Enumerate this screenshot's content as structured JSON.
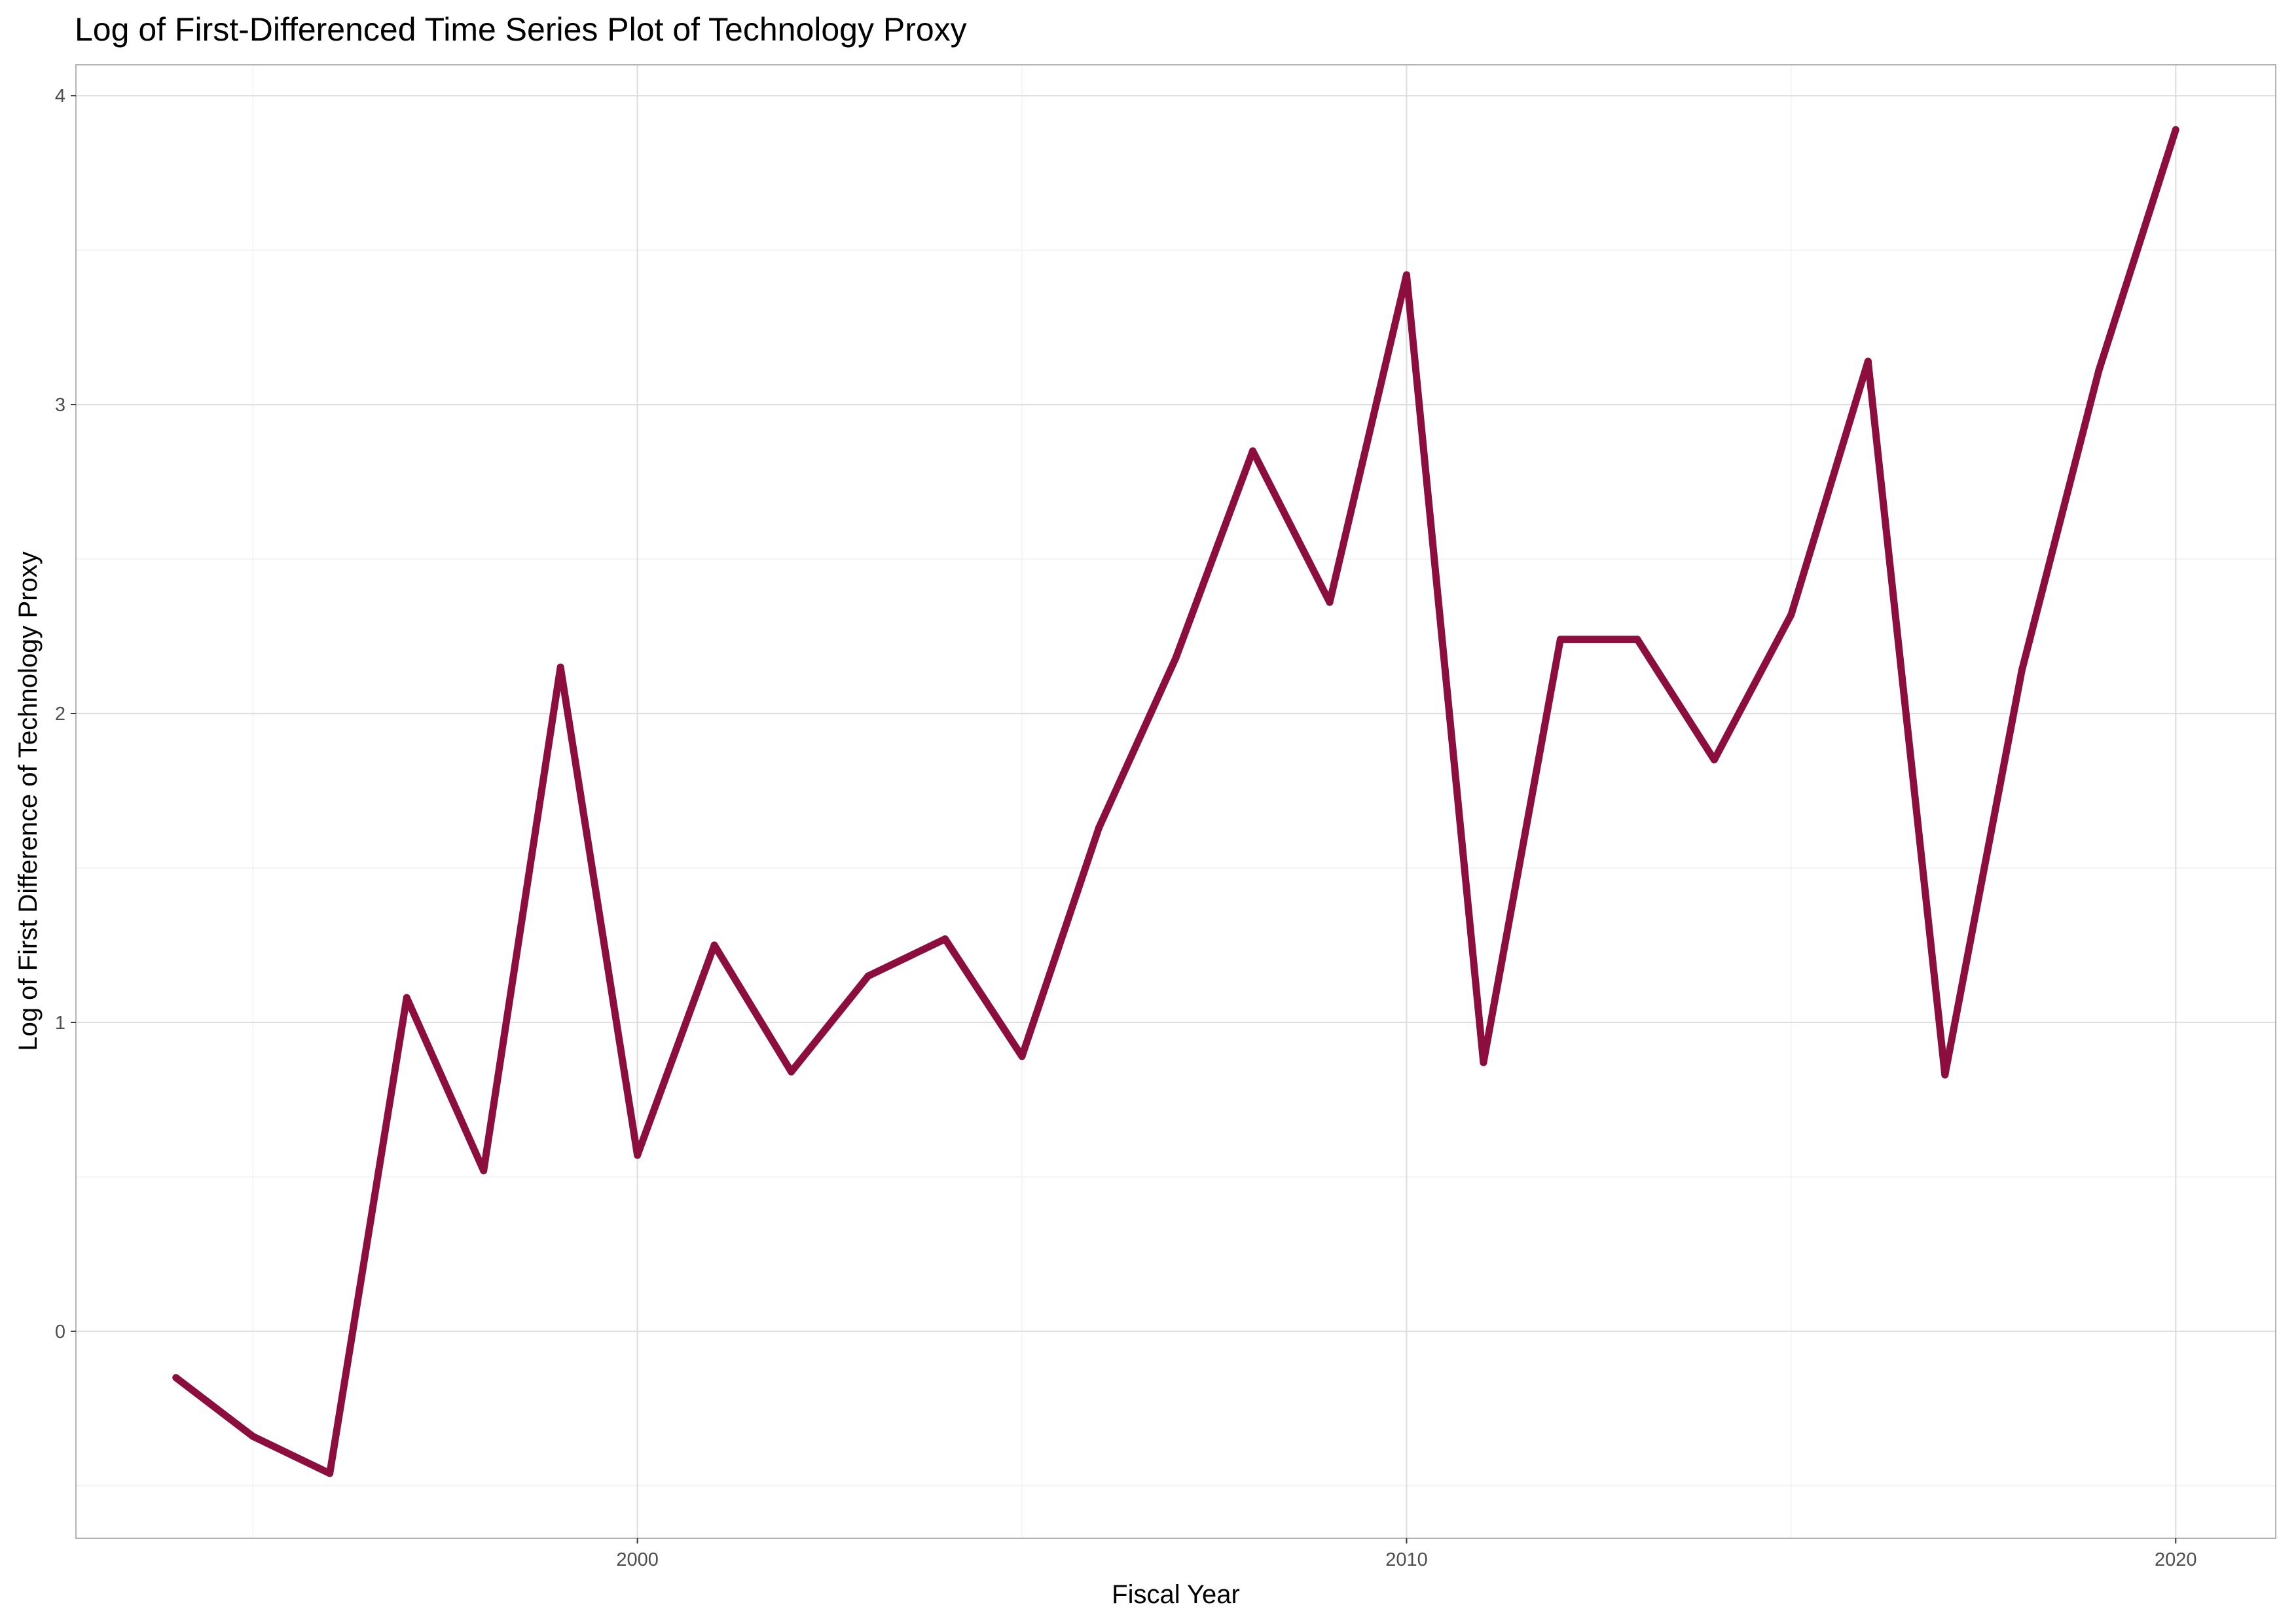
{
  "chart_data": {
    "type": "line",
    "title": "Log of First-Differenced Time Series Plot of Technology Proxy",
    "xlabel": "Fiscal Year",
    "ylabel": "Log of First Difference of Technology Proxy",
    "x": [
      1994,
      1995,
      1996,
      1997,
      1998,
      1999,
      2000,
      2001,
      2002,
      2003,
      2004,
      2005,
      2006,
      2007,
      2008,
      2009,
      2010,
      2011,
      2012,
      2013,
      2014,
      2015,
      2016,
      2017,
      2018,
      2019,
      2020
    ],
    "series": [
      {
        "values": [
          -0.15,
          -0.34,
          -0.46,
          1.08,
          0.52,
          2.15,
          0.57,
          1.25,
          0.84,
          1.15,
          1.27,
          0.89,
          1.63,
          2.18,
          2.85,
          2.36,
          3.42,
          0.87,
          2.24,
          2.24,
          1.85,
          2.32,
          3.14,
          0.83,
          2.14,
          3.11,
          3.89
        ],
        "color": "#8b0e3e"
      }
    ],
    "xlim": [
      1992.7,
      2021.3
    ],
    "ylim": [
      -0.67,
      4.1
    ],
    "x_ticks": [
      2000,
      2010,
      2020
    ],
    "x_minor_ticks": [
      1995,
      2005,
      2015
    ],
    "y_ticks": [
      0,
      1,
      2,
      3,
      4
    ],
    "y_minor_ticks": [
      -0.5,
      0.5,
      1.5,
      2.5,
      3.5
    ],
    "x_tick_labels": [
      "2000",
      "2010",
      "2020"
    ],
    "y_tick_labels": [
      "0",
      "1",
      "2",
      "3",
      "4"
    ],
    "grid": true,
    "legend": "none",
    "theme": "light"
  }
}
